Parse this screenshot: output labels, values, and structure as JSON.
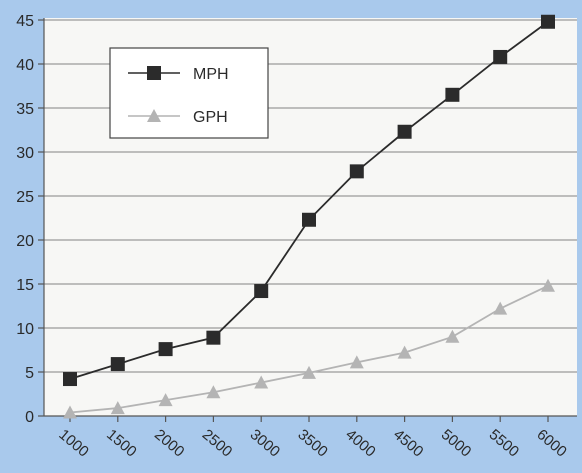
{
  "colors": {
    "frame_background": "#a9c9ec",
    "plot_background": "#f7f7f5",
    "gridline": "#9a9a9a",
    "series_mph": "#2b2b2b",
    "series_gph": "#b4b4b4"
  },
  "chart_data": {
    "type": "line",
    "title": "",
    "xlabel": "",
    "ylabel": "",
    "x": [
      "1000",
      "1500",
      "2000",
      "2500",
      "3000",
      "3500",
      "4000",
      "4500",
      "5000",
      "5500",
      "6000"
    ],
    "ylim": [
      0,
      45
    ],
    "yticks": [
      0,
      5,
      10,
      15,
      20,
      25,
      30,
      35,
      40,
      45
    ],
    "grid": "horizontal",
    "legend_position": "top-left",
    "series": [
      {
        "name": "MPH",
        "marker": "square",
        "color": "#2b2b2b",
        "values": [
          4.2,
          5.9,
          7.6,
          8.9,
          14.2,
          22.3,
          27.8,
          32.3,
          36.5,
          40.8,
          44.8
        ]
      },
      {
        "name": "GPH",
        "marker": "triangle",
        "color": "#b4b4b4",
        "values": [
          0.4,
          0.9,
          1.8,
          2.7,
          3.8,
          4.9,
          6.1,
          7.2,
          9.0,
          12.2,
          14.8
        ]
      }
    ]
  }
}
